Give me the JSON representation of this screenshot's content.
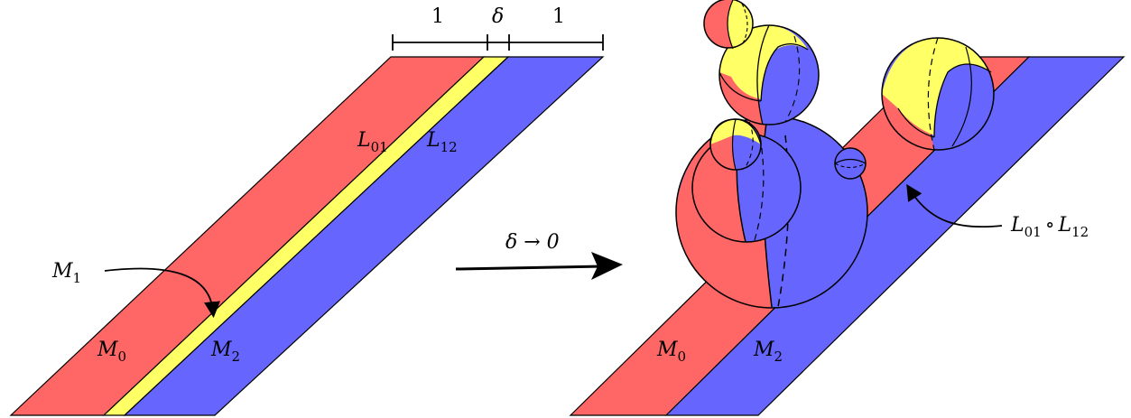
{
  "colors": {
    "red": "#ff6666",
    "yellow": "#ffff66",
    "blue": "#6666ff",
    "outline": "#000000"
  },
  "left_panel": {
    "width_1_left": "1",
    "width_delta": "δ",
    "width_1_right": "1",
    "label_L01_main": "L",
    "label_L01_sub": "01",
    "label_L12_main": "L",
    "label_L12_sub": "12",
    "label_M1_main": "M",
    "label_M1_sub": "1",
    "label_M0_main": "M",
    "label_M0_sub": "0",
    "label_M2_main": "M",
    "label_M2_sub": "2"
  },
  "arrow": {
    "label": "δ → 0"
  },
  "right_panel": {
    "label_M0_main": "M",
    "label_M0_sub": "0",
    "label_M2_main": "M",
    "label_M2_sub": "2",
    "composite_a_main": "L",
    "composite_a_sub": "01",
    "composite_op": "∘",
    "composite_b_main": "L",
    "composite_b_sub": "12"
  }
}
